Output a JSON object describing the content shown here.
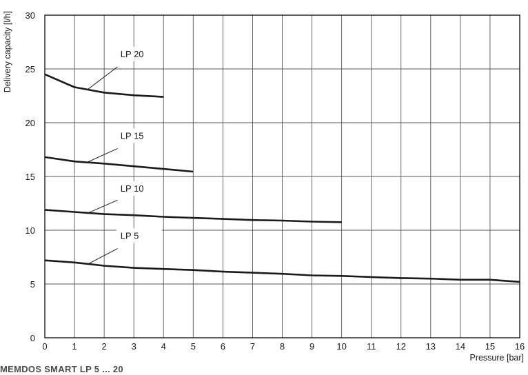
{
  "chart_data": {
    "type": "line",
    "title": "",
    "xlabel": "Pressure [bar]",
    "ylabel": "Delivery capacity [l/h]",
    "xlim": [
      0,
      16
    ],
    "ylim": [
      0,
      30
    ],
    "grid": true,
    "legend": "none",
    "x_ticks": [
      "0",
      "1",
      "2",
      "3",
      "4",
      "5",
      "6",
      "7",
      "8",
      "9",
      "10",
      "11",
      "12",
      "13",
      "14",
      "15",
      "16"
    ],
    "y_ticks": [
      "0",
      "5",
      "10",
      "15",
      "20",
      "25",
      "30"
    ],
    "line_color": "#1a1a1a",
    "grid_color": "#555555",
    "series": [
      {
        "name": "LP 20",
        "x": [
          0,
          1,
          2,
          3,
          4
        ],
        "y": [
          24.5,
          23.3,
          22.8,
          22.55,
          22.4
        ]
      },
      {
        "name": "LP 15",
        "x": [
          0,
          1,
          2,
          3,
          4,
          5
        ],
        "y": [
          16.8,
          16.4,
          16.2,
          15.95,
          15.7,
          15.45
        ]
      },
      {
        "name": "LP 10",
        "x": [
          0,
          1,
          2,
          3,
          4,
          5,
          6,
          7,
          8,
          9,
          10
        ],
        "y": [
          11.9,
          11.7,
          11.5,
          11.4,
          11.25,
          11.15,
          11.05,
          10.95,
          10.9,
          10.8,
          10.75
        ]
      },
      {
        "name": "LP 5",
        "x": [
          0,
          1,
          2,
          3,
          4,
          5,
          6,
          7,
          8,
          9,
          10,
          11,
          12,
          13,
          14,
          15,
          16
        ],
        "y": [
          7.2,
          7.0,
          6.7,
          6.5,
          6.4,
          6.3,
          6.15,
          6.05,
          5.95,
          5.8,
          5.75,
          5.65,
          5.55,
          5.5,
          5.4,
          5.4,
          5.2
        ]
      }
    ],
    "annotations": [
      {
        "text": "LP 20",
        "series": "LP 20",
        "label_x": 2.55,
        "label_y": 26.1,
        "leader_from": [
          1.45,
          23.1
        ],
        "leader_to": [
          2.45,
          25.2
        ]
      },
      {
        "text": "LP 15",
        "series": "LP 15",
        "label_x": 2.55,
        "label_y": 18.5,
        "leader_from": [
          1.45,
          16.35
        ],
        "leader_to": [
          2.45,
          17.6
        ]
      },
      {
        "text": "LP 10",
        "series": "LP 10",
        "label_x": 2.55,
        "label_y": 13.6,
        "leader_from": [
          1.45,
          11.6
        ],
        "leader_to": [
          2.45,
          12.8
        ]
      },
      {
        "text": "LP 5",
        "series": "LP 5",
        "label_x": 2.55,
        "label_y": 9.2,
        "leader_from": [
          1.45,
          6.85
        ],
        "leader_to": [
          2.45,
          8.3
        ]
      }
    ]
  },
  "footer": {
    "caption": "MEMDOS SMART LP 5 ... 20"
  }
}
